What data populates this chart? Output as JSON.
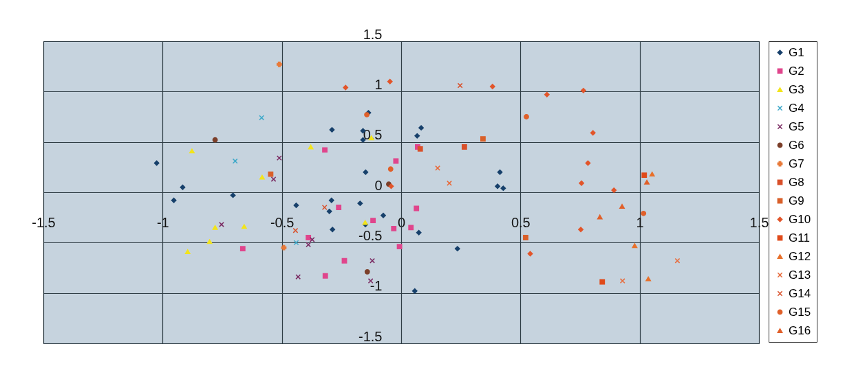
{
  "chart_data": {
    "type": "scatter",
    "xlim": [
      -1.5,
      1.5
    ],
    "ylim": [
      -1.5,
      1.5
    ],
    "xticks": [
      -1.5,
      -1,
      -0.5,
      0,
      0.5,
      1,
      1.5
    ],
    "yticks": [
      -1.5,
      -1,
      -0.5,
      0,
      0.5,
      1,
      1.5
    ],
    "grid": true,
    "legend": "right",
    "series": [
      {
        "name": "G1",
        "color": "#17406b",
        "marker": "diamond",
        "x": [
          -1.025,
          -0.953,
          -0.916,
          -0.705,
          -0.44,
          -0.301,
          -0.292,
          -0.29,
          -0.288,
          -0.172,
          -0.16,
          -0.16,
          -0.149,
          -0.15,
          -0.137,
          -0.075,
          0.057,
          0.067,
          0.084,
          0.074,
          0.236,
          0.404,
          0.414,
          0.428
        ],
        "values": [
          0.29,
          -0.08,
          0.05,
          -0.03,
          -0.13,
          -0.19,
          -0.08,
          0.62,
          -0.37,
          -0.11,
          0.61,
          0.52,
          0.2,
          -0.32,
          0.79,
          -0.23,
          -0.98,
          0.56,
          0.64,
          -0.4,
          -0.56,
          0.06,
          0.2,
          0.04
        ]
      },
      {
        "name": "G2",
        "color": "#e0458c",
        "marker": "square",
        "x": [
          -0.664,
          -0.389,
          -0.32,
          -0.318,
          -0.262,
          -0.238,
          -0.118,
          -0.031,
          -0.022,
          -0.007,
          0.041,
          0.064,
          0.069
        ],
        "values": [
          -0.56,
          -0.45,
          0.42,
          -0.83,
          -0.15,
          -0.68,
          -0.28,
          -0.36,
          0.31,
          -0.54,
          -0.35,
          -0.16,
          0.45
        ]
      },
      {
        "name": "G3",
        "color": "#f2e41c",
        "marker": "triangle",
        "x": [
          -0.895,
          -0.877,
          -0.803,
          -0.78,
          -0.658,
          -0.583,
          -0.379,
          -0.151,
          -0.125
        ],
        "values": [
          -0.59,
          0.41,
          -0.49,
          -0.35,
          -0.34,
          0.15,
          0.45,
          -0.3,
          0.54
        ]
      },
      {
        "name": "G4",
        "color": "#3fa9c9",
        "marker": "cross",
        "x": [
          -0.696,
          -0.585,
          -0.44
        ],
        "values": [
          0.31,
          0.74,
          -0.5
        ]
      },
      {
        "name": "G5",
        "color": "#7a2a62",
        "marker": "cross",
        "x": [
          -0.753,
          -0.535,
          -0.511,
          -0.432,
          -0.389,
          -0.373,
          -0.128,
          -0.121
        ],
        "values": [
          -0.32,
          0.13,
          0.34,
          -0.84,
          -0.52,
          -0.47,
          -0.88,
          -0.68
        ]
      },
      {
        "name": "G6",
        "color": "#7b3f2a",
        "marker": "circle",
        "x": [
          -0.78,
          -0.142,
          -0.052
        ],
        "values": [
          0.52,
          -0.79,
          0.08
        ]
      },
      {
        "name": "G7",
        "color": "#e87a3a",
        "marker": "plus",
        "x": [
          -0.511,
          -0.492
        ],
        "values": [
          1.27,
          -0.55
        ]
      },
      {
        "name": "G8",
        "color": "#d9502a",
        "marker": "square",
        "x": [
          0.08,
          0.265
        ],
        "values": [
          0.43,
          0.45
        ]
      },
      {
        "name": "G9",
        "color": "#d9602a",
        "marker": "square",
        "x": [
          -0.547,
          0.343,
          0.522
        ],
        "values": [
          0.18,
          0.53,
          -0.45
        ]
      },
      {
        "name": "G10",
        "color": "#e2552a",
        "marker": "diamond",
        "x": [
          -0.233,
          -0.047,
          -0.042,
          0.383,
          0.541,
          0.611,
          0.753,
          0.756,
          0.764,
          0.783,
          0.804,
          0.892
        ],
        "values": [
          1.04,
          1.1,
          0.06,
          1.05,
          -0.61,
          0.97,
          -0.37,
          0.09,
          1.01,
          0.29,
          0.59,
          0.02
        ]
      },
      {
        "name": "G11",
        "color": "#e04a1a",
        "marker": "square",
        "x": [
          0.843,
          1.019
        ],
        "values": [
          -0.89,
          0.17
        ]
      },
      {
        "name": "G12",
        "color": "#e8702a",
        "marker": "triangle",
        "x": [
          0.979,
          1.036,
          1.052
        ],
        "values": [
          -0.53,
          -0.86,
          0.18
        ]
      },
      {
        "name": "G13",
        "color": "#e86a3a",
        "marker": "cross",
        "x": [
          0.153,
          0.202,
          0.928,
          1.158
        ],
        "values": [
          0.24,
          0.09,
          -0.88,
          -0.68
        ]
      },
      {
        "name": "G14",
        "color": "#d9502a",
        "marker": "cross",
        "x": [
          -0.443,
          -0.321,
          0.247
        ],
        "values": [
          -0.38,
          -0.15,
          1.06
        ]
      },
      {
        "name": "G15",
        "color": "#e0602a",
        "marker": "circle",
        "x": [
          -0.144,
          -0.044,
          0.525,
          1.016
        ],
        "values": [
          0.77,
          0.23,
          0.75,
          -0.21
        ]
      },
      {
        "name": "G16",
        "color": "#e0602a",
        "marker": "triangle",
        "x": [
          0.833,
          0.926,
          1.03
        ],
        "values": [
          -0.245,
          -0.14,
          0.1
        ]
      }
    ]
  }
}
